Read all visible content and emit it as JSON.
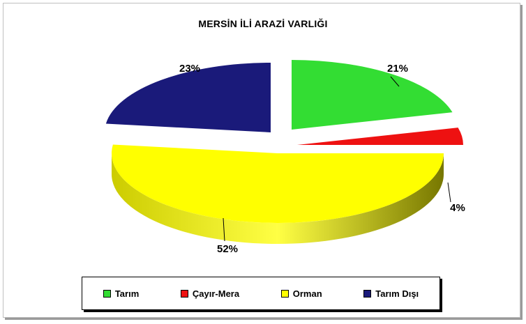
{
  "chart_data": {
    "type": "pie",
    "title": "MERSİN İLİ ARAZİ  VARLIĞI",
    "categories": [
      "Tarım",
      "Çayır-Mera",
      "Orman",
      "Tarım Dışı"
    ],
    "values": [
      21,
      4,
      52,
      23
    ],
    "labels": [
      "21%",
      "4%",
      "52%",
      "23%"
    ],
    "colors": [
      "#33dd33",
      "#ee1111",
      "#ffff00",
      "#1a1a7a"
    ],
    "legend_position": "bottom"
  }
}
